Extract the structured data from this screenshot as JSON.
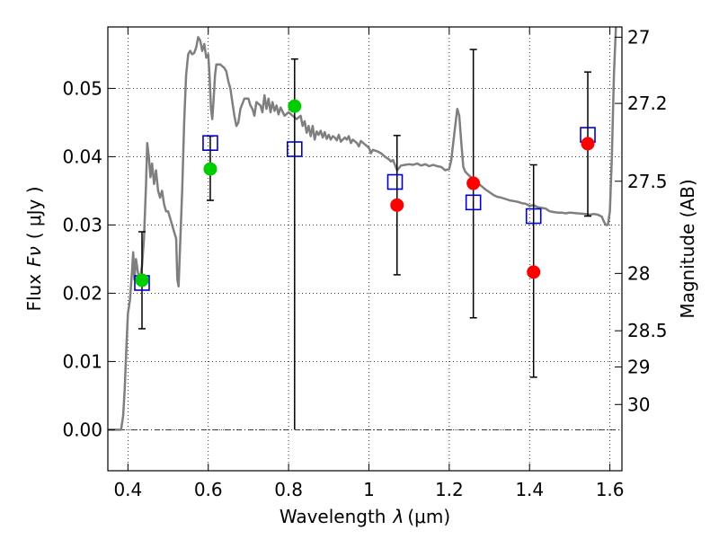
{
  "chart_data": {
    "type": "scatter",
    "title": "",
    "xlabel_text": "Wavelength",
    "xlabel_symbol": "λ",
    "xlabel_unit": "(μm)",
    "ylabel_text": "Flux",
    "ylabel_symbol": "Fν",
    "ylabel_unit": "( μJy )",
    "y2label": "Magnitude (AB)",
    "xlim": [
      0.35,
      1.63
    ],
    "ylim": [
      -0.006,
      0.059
    ],
    "xticks": [
      0.4,
      0.6,
      0.8,
      1.0,
      1.2,
      1.4,
      1.6
    ],
    "xtick_labels": [
      "0.4",
      "0.6",
      "0.8",
      "1",
      "1.2",
      "1.4",
      "1.6"
    ],
    "yticks": [
      0.0,
      0.01,
      0.02,
      0.03,
      0.04,
      0.05
    ],
    "ytick_labels": [
      "0.00",
      "0.01",
      "0.02",
      "0.03",
      "0.04",
      "0.05"
    ],
    "y2ticks": [
      {
        "flux": 0.0575,
        "label": "27"
      },
      {
        "flux": 0.0478,
        "label": "27.2"
      },
      {
        "flux": 0.0364,
        "label": "27.5"
      },
      {
        "flux": 0.0229,
        "label": "28"
      },
      {
        "flux": 0.0145,
        "label": "28.5"
      },
      {
        "flux": 0.0092,
        "label": "29"
      },
      {
        "flux": 0.0037,
        "label": "30"
      }
    ],
    "grid": true,
    "zero_line": true,
    "series": [
      {
        "kind": "template_spectrum",
        "color": "#7f7f7f",
        "points": [
          [
            0.35,
            0.0
          ],
          [
            0.38,
            0.0
          ],
          [
            0.383,
            0.0
          ],
          [
            0.388,
            0.002
          ],
          [
            0.392,
            0.006
          ],
          [
            0.396,
            0.012
          ],
          [
            0.4,
            0.017
          ],
          [
            0.405,
            0.019
          ],
          [
            0.41,
            0.023
          ],
          [
            0.413,
            0.026
          ],
          [
            0.416,
            0.022
          ],
          [
            0.42,
            0.025
          ],
          [
            0.425,
            0.023
          ],
          [
            0.43,
            0.022
          ],
          [
            0.435,
            0.024
          ],
          [
            0.44,
            0.028
          ],
          [
            0.445,
            0.036
          ],
          [
            0.448,
            0.042
          ],
          [
            0.452,
            0.04
          ],
          [
            0.456,
            0.037
          ],
          [
            0.46,
            0.039
          ],
          [
            0.465,
            0.036
          ],
          [
            0.47,
            0.038
          ],
          [
            0.475,
            0.035
          ],
          [
            0.48,
            0.034
          ],
          [
            0.485,
            0.035
          ],
          [
            0.49,
            0.033
          ],
          [
            0.495,
            0.032
          ],
          [
            0.5,
            0.032
          ],
          [
            0.505,
            0.031
          ],
          [
            0.51,
            0.03
          ],
          [
            0.515,
            0.029
          ],
          [
            0.52,
            0.028
          ],
          [
            0.523,
            0.022
          ],
          [
            0.526,
            0.021
          ],
          [
            0.53,
            0.027
          ],
          [
            0.535,
            0.035
          ],
          [
            0.54,
            0.045
          ],
          [
            0.545,
            0.052
          ],
          [
            0.55,
            0.055
          ],
          [
            0.555,
            0.0555
          ],
          [
            0.56,
            0.055
          ],
          [
            0.565,
            0.0552
          ],
          [
            0.57,
            0.056
          ],
          [
            0.575,
            0.0575
          ],
          [
            0.58,
            0.057
          ],
          [
            0.585,
            0.0555
          ],
          [
            0.59,
            0.0565
          ],
          [
            0.595,
            0.0545
          ],
          [
            0.6,
            0.055
          ],
          [
            0.603,
            0.052
          ],
          [
            0.607,
            0.047
          ],
          [
            0.61,
            0.0455
          ],
          [
            0.613,
            0.048
          ],
          [
            0.617,
            0.052
          ],
          [
            0.62,
            0.0535
          ],
          [
            0.63,
            0.0535
          ],
          [
            0.64,
            0.053
          ],
          [
            0.645,
            0.0525
          ],
          [
            0.65,
            0.051
          ],
          [
            0.655,
            0.05
          ],
          [
            0.66,
            0.048
          ],
          [
            0.665,
            0.046
          ],
          [
            0.67,
            0.0445
          ],
          [
            0.675,
            0.045
          ],
          [
            0.68,
            0.047
          ],
          [
            0.69,
            0.0485
          ],
          [
            0.7,
            0.0485
          ],
          [
            0.705,
            0.0475
          ],
          [
            0.71,
            0.047
          ],
          [
            0.715,
            0.046
          ],
          [
            0.72,
            0.048
          ],
          [
            0.73,
            0.0475
          ],
          [
            0.735,
            0.0465
          ],
          [
            0.74,
            0.049
          ],
          [
            0.745,
            0.047
          ],
          [
            0.75,
            0.0485
          ],
          [
            0.755,
            0.0465
          ],
          [
            0.76,
            0.048
          ],
          [
            0.765,
            0.0467
          ],
          [
            0.77,
            0.0475
          ],
          [
            0.775,
            0.0462
          ],
          [
            0.78,
            0.0472
          ],
          [
            0.79,
            0.046
          ],
          [
            0.8,
            0.0465
          ],
          [
            0.81,
            0.046
          ],
          [
            0.82,
            0.0455
          ],
          [
            0.83,
            0.046
          ],
          [
            0.835,
            0.0445
          ],
          [
            0.84,
            0.0452
          ],
          [
            0.845,
            0.0435
          ],
          [
            0.85,
            0.0445
          ],
          [
            0.855,
            0.043
          ],
          [
            0.86,
            0.0445
          ],
          [
            0.865,
            0.0425
          ],
          [
            0.87,
            0.0437
          ],
          [
            0.875,
            0.0432
          ],
          [
            0.88,
            0.0438
          ],
          [
            0.885,
            0.0428
          ],
          [
            0.89,
            0.0436
          ],
          [
            0.895,
            0.0426
          ],
          [
            0.9,
            0.0432
          ],
          [
            0.905,
            0.0425
          ],
          [
            0.91,
            0.043
          ],
          [
            0.915,
            0.0428
          ],
          [
            0.92,
            0.0424
          ],
          [
            0.925,
            0.0432
          ],
          [
            0.93,
            0.0422
          ],
          [
            0.94,
            0.0428
          ],
          [
            0.945,
            0.0425
          ],
          [
            0.95,
            0.043
          ],
          [
            0.955,
            0.042
          ],
          [
            0.96,
            0.0425
          ],
          [
            0.97,
            0.042
          ],
          [
            0.975,
            0.0415
          ],
          [
            0.98,
            0.0423
          ],
          [
            0.99,
            0.0418
          ],
          [
            1.0,
            0.0413
          ],
          [
            1.005,
            0.0405
          ],
          [
            1.01,
            0.041
          ],
          [
            1.02,
            0.0408
          ],
          [
            1.03,
            0.0405
          ],
          [
            1.04,
            0.04
          ],
          [
            1.05,
            0.0396
          ],
          [
            1.055,
            0.0393
          ],
          [
            1.06,
            0.0395
          ],
          [
            1.065,
            0.0388
          ],
          [
            1.07,
            0.038
          ],
          [
            1.08,
            0.0387
          ],
          [
            1.09,
            0.0388
          ],
          [
            1.1,
            0.0389
          ],
          [
            1.11,
            0.0388
          ],
          [
            1.12,
            0.039
          ],
          [
            1.13,
            0.0387
          ],
          [
            1.14,
            0.0389
          ],
          [
            1.15,
            0.0386
          ],
          [
            1.16,
            0.0388
          ],
          [
            1.17,
            0.0386
          ],
          [
            1.18,
            0.0385
          ],
          [
            1.19,
            0.038
          ],
          [
            1.2,
            0.0382
          ],
          [
            1.205,
            0.0395
          ],
          [
            1.21,
            0.042
          ],
          [
            1.215,
            0.0445
          ],
          [
            1.22,
            0.047
          ],
          [
            1.225,
            0.046
          ],
          [
            1.23,
            0.042
          ],
          [
            1.235,
            0.0385
          ],
          [
            1.24,
            0.0378
          ],
          [
            1.25,
            0.0372
          ],
          [
            1.26,
            0.0367
          ],
          [
            1.27,
            0.0362
          ],
          [
            1.28,
            0.0357
          ],
          [
            1.29,
            0.0352
          ],
          [
            1.3,
            0.0348
          ],
          [
            1.31,
            0.0344
          ],
          [
            1.32,
            0.0341
          ],
          [
            1.33,
            0.034
          ],
          [
            1.34,
            0.0338
          ],
          [
            1.35,
            0.0336
          ],
          [
            1.36,
            0.0335
          ],
          [
            1.37,
            0.0334
          ],
          [
            1.38,
            0.0332
          ],
          [
            1.39,
            0.0331
          ],
          [
            1.4,
            0.0328
          ],
          [
            1.41,
            0.0329
          ],
          [
            1.42,
            0.0326
          ],
          [
            1.43,
            0.0325
          ],
          [
            1.44,
            0.0324
          ],
          [
            1.45,
            0.032
          ],
          [
            1.46,
            0.0319
          ],
          [
            1.47,
            0.0318
          ],
          [
            1.48,
            0.0318
          ],
          [
            1.49,
            0.0317
          ],
          [
            1.5,
            0.0318
          ],
          [
            1.52,
            0.0317
          ],
          [
            1.54,
            0.0316
          ],
          [
            1.55,
            0.0315
          ],
          [
            1.56,
            0.0316
          ],
          [
            1.57,
            0.0315
          ],
          [
            1.58,
            0.0312
          ],
          [
            1.585,
            0.0305
          ],
          [
            1.59,
            0.03
          ],
          [
            1.595,
            0.03
          ],
          [
            1.6,
            0.032
          ],
          [
            1.605,
            0.04
          ],
          [
            1.61,
            0.052
          ],
          [
            1.615,
            0.059
          ]
        ]
      },
      {
        "kind": "model_photometry",
        "marker": "open-square",
        "color": "#0000cc",
        "x": [
          0.435,
          0.605,
          0.815,
          1.065,
          1.26,
          1.41,
          1.545
        ],
        "y": [
          0.0215,
          0.042,
          0.0411,
          0.0363,
          0.0333,
          0.0313,
          0.0432
        ]
      },
      {
        "kind": "observed_optical",
        "marker": "filled-circle",
        "color": "#00cc00",
        "x": [
          0.435,
          0.605,
          0.815
        ],
        "y": [
          0.0219,
          0.0382,
          0.0474
        ],
        "yerr_low": [
          0.0148,
          0.0336,
          0.0
        ],
        "yerr_high": [
          0.029,
          0.043,
          0.0543
        ]
      },
      {
        "kind": "observed_nir",
        "marker": "filled-circle",
        "color": "#ff0000",
        "x": [
          1.07,
          1.26,
          1.41,
          1.545
        ],
        "y": [
          0.0329,
          0.0361,
          0.0231,
          0.0419
        ],
        "yerr_low": [
          0.0227,
          0.0164,
          0.0077,
          0.0313
        ],
        "yerr_high": [
          0.0431,
          0.0557,
          0.0388,
          0.0524
        ]
      }
    ]
  }
}
